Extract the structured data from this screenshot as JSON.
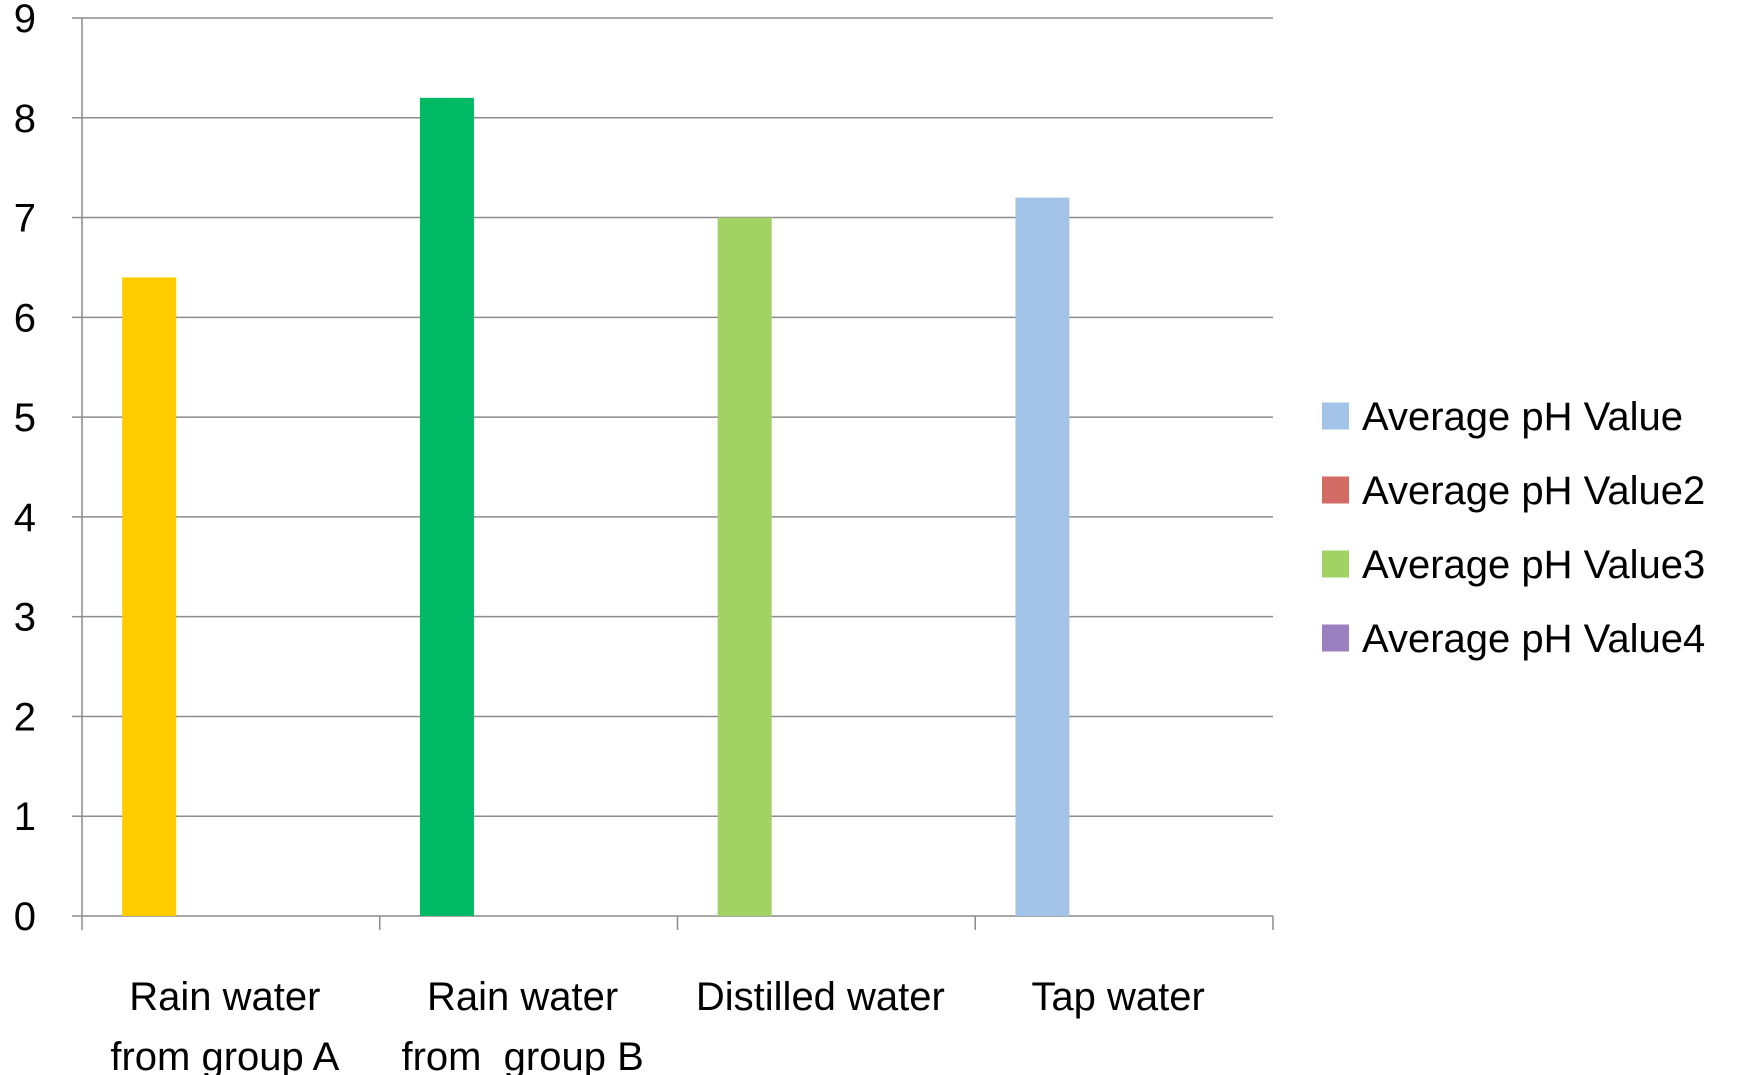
{
  "chart_data": {
    "type": "bar",
    "categories": [
      [
        "Rain water",
        "from group A"
      ],
      [
        "Rain water",
        "from  group B"
      ],
      [
        "Distilled water"
      ],
      [
        "Tap water"
      ]
    ],
    "series": [
      {
        "name": "Average pH Value",
        "color": "#A3C4E8",
        "values": [
          null,
          null,
          null,
          7.2
        ]
      },
      {
        "name": "Average pH Value2",
        "color": "#D16B63",
        "values": [
          null,
          null,
          null,
          null
        ]
      },
      {
        "name": "Average pH Value3",
        "color": "#A2D264",
        "values": [
          null,
          null,
          7.0,
          null
        ]
      },
      {
        "name": "Average pH Value4",
        "color": "#9A80BE",
        "values": [
          null,
          null,
          null,
          null
        ]
      }
    ],
    "bars": [
      {
        "category": 0,
        "value": 6.4,
        "color": "#FFCC00"
      },
      {
        "category": 1,
        "value": 8.2,
        "color": "#00B964"
      },
      {
        "category": 2,
        "value": 7.0,
        "color": "#A2D264"
      },
      {
        "category": 3,
        "value": 7.2,
        "color": "#A3C4E8"
      }
    ],
    "yticks": [
      "0",
      "1",
      "2",
      "3",
      "4",
      "5",
      "6",
      "7",
      "8",
      "9"
    ],
    "ylim": [
      0,
      9
    ],
    "grid": true,
    "legend_position": "right",
    "title": "",
    "xlabel": "",
    "ylabel": ""
  }
}
